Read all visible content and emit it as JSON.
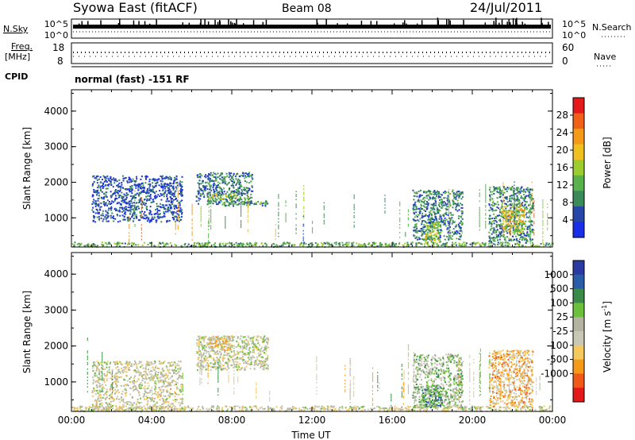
{
  "header": {
    "station": "Syowa East (fitACF)",
    "beam": "Beam 08",
    "date": "24/Jul/2011"
  },
  "status_panel": {
    "nsky_label": "N.Sky",
    "nsearch_label": "N.Search",
    "freq_label_line1": "Freq.",
    "freq_label_line2": "[MHz]",
    "nave_label": "Nave",
    "cpid_label": "CPID",
    "noise_ticks": [
      "10^5",
      "10^0"
    ],
    "noise_ticks_right": [
      "10^5",
      "10^0"
    ],
    "freq_ticks": [
      "18",
      "8"
    ],
    "nave_ticks": [
      "60",
      "0"
    ],
    "cpid_text": "normal (fast) -151 RF"
  },
  "colors": {
    "power_scale": [
      "#1a2ee8",
      "#2646a8",
      "#3b8a5a",
      "#59b34c",
      "#9ccc2e",
      "#f0c020",
      "#f59a18",
      "#f06018",
      "#e41a1a"
    ],
    "velocity_scale": [
      "#e41a1a",
      "#f05a18",
      "#f59a18",
      "#f5c860",
      "#c8c8b4",
      "#b4b4a0",
      "#6cc03c",
      "#3a8a48",
      "#2a5ca8",
      "#2a3aa0"
    ]
  },
  "chart_data": [
    {
      "type": "heatmap",
      "name": "power",
      "xlabel": "",
      "ylabel": "Slant Range [km]",
      "x_range_hours": [
        0,
        24
      ],
      "ylim": [
        180,
        4600
      ],
      "y_ticks": [
        "1000",
        "2000",
        "3000",
        "4000"
      ],
      "colorbar": {
        "label": "Power [dB]",
        "ticks": [
          "4",
          "8",
          "12",
          "16",
          "20",
          "24",
          "28"
        ],
        "range": [
          0,
          32
        ]
      },
      "scatter_regions": [
        {
          "t0": 6.2,
          "t1": 9.0,
          "r0": 1400,
          "r1": 2300,
          "value": 8
        },
        {
          "t0": 6.8,
          "t1": 8.2,
          "r0": 1550,
          "r1": 1700,
          "value": 14
        },
        {
          "t0": 7.5,
          "t1": 9.8,
          "r0": 1350,
          "r1": 1500,
          "value": 10
        },
        {
          "t0": 1.0,
          "t1": 5.5,
          "r0": 900,
          "r1": 2200,
          "value": 5
        },
        {
          "t0": 17.0,
          "t1": 19.5,
          "r0": 400,
          "r1": 1800,
          "value": 8
        },
        {
          "t0": 17.6,
          "t1": 18.4,
          "r0": 300,
          "r1": 900,
          "value": 16
        },
        {
          "t0": 20.8,
          "t1": 23.0,
          "r0": 300,
          "r1": 1900,
          "value": 9
        },
        {
          "t0": 21.4,
          "t1": 22.6,
          "r0": 600,
          "r1": 1400,
          "value": 18
        },
        {
          "t0": 0.0,
          "t1": 24.0,
          "r0": 200,
          "r1": 330,
          "value": 12
        }
      ]
    },
    {
      "type": "heatmap",
      "name": "velocity",
      "xlabel": "Time UT",
      "ylabel": "Slant Range [km]",
      "x_range_hours": [
        0,
        24
      ],
      "x_ticks": [
        "00:00",
        "04:00",
        "08:00",
        "12:00",
        "16:00",
        "20:00",
        "00:00"
      ],
      "ylim": [
        180,
        4600
      ],
      "y_ticks": [
        "1000",
        "2000",
        "3000",
        "4000"
      ],
      "colorbar": {
        "label": "Velocity [m s^-1]",
        "ticks": [
          "1000",
          "500",
          "100",
          "25",
          "-25",
          "-100",
          "-500",
          "-1000"
        ],
        "range": [
          -1250,
          1250
        ]
      },
      "scatter_regions": [
        {
          "t0": 6.2,
          "t1": 9.8,
          "r0": 1350,
          "r1": 2300,
          "value": 0
        },
        {
          "t0": 6.8,
          "t1": 8.0,
          "r0": 1900,
          "r1": 2300,
          "value": -300
        },
        {
          "t0": 1.0,
          "t1": 5.5,
          "r0": 200,
          "r1": 1600,
          "value": -80
        },
        {
          "t0": 17.0,
          "t1": 19.5,
          "r0": 300,
          "r1": 1800,
          "value": 200
        },
        {
          "t0": 17.5,
          "t1": 18.5,
          "r0": 300,
          "r1": 900,
          "value": 600
        },
        {
          "t0": 20.8,
          "t1": 23.0,
          "r0": 300,
          "r1": 1900,
          "value": -400
        },
        {
          "t0": 0.0,
          "t1": 24.0,
          "r0": 200,
          "r1": 350,
          "value": -60
        }
      ]
    }
  ]
}
